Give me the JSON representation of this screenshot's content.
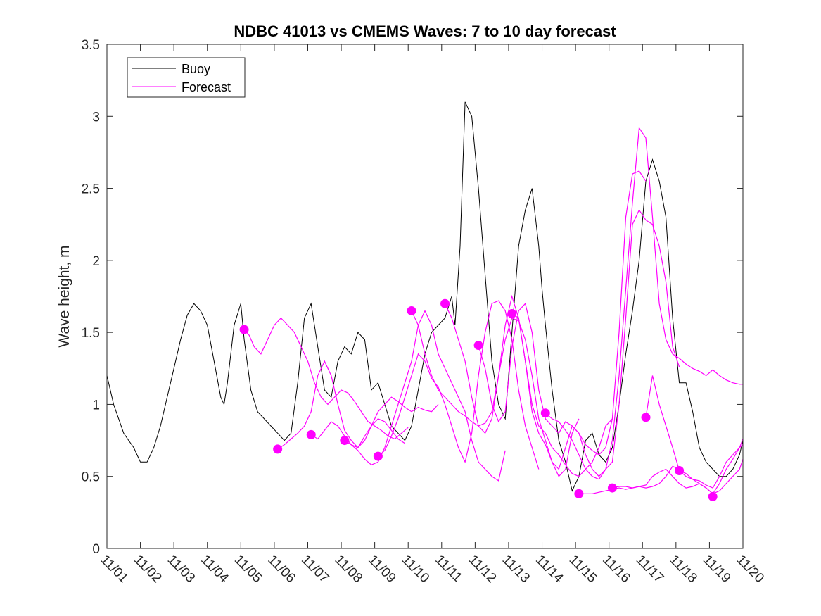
{
  "chart_data": {
    "type": "line",
    "title": "NDBC 41013 vs CMEMS Waves: 7 to 10 day forecast",
    "xlabel": "",
    "ylabel": "Wave height, m",
    "xlim": [
      0,
      19
    ],
    "ylim": [
      0,
      3.5
    ],
    "xticks": [
      "11/01",
      "11/02",
      "11/03",
      "11/04",
      "11/05",
      "11/06",
      "11/07",
      "11/08",
      "11/09",
      "11/10",
      "11/11",
      "11/12",
      "11/13",
      "11/14",
      "11/15",
      "11/16",
      "11/17",
      "11/18",
      "11/19",
      "11/20"
    ],
    "yticks": [
      0,
      0.5,
      1,
      1.5,
      2,
      2.5,
      3,
      3.5
    ],
    "ytick_labels": [
      "0",
      "0.5",
      "1",
      "1.5",
      "2",
      "2.5",
      "3",
      "3.5"
    ],
    "legend": {
      "position": "top-left",
      "entries": [
        "Buoy",
        "Forecast"
      ]
    },
    "colors": {
      "buoy": "#000000",
      "forecast": "#ff00ff"
    },
    "buoy": {
      "name": "Buoy",
      "x": [
        0,
        0.1,
        0.2,
        0.35,
        0.5,
        0.65,
        0.8,
        0.9,
        1.0,
        1.2,
        1.4,
        1.6,
        1.8,
        2.0,
        2.2,
        2.4,
        2.6,
        2.8,
        3.0,
        3.2,
        3.4,
        3.5,
        3.6,
        3.8,
        4.0,
        4.1,
        4.3,
        4.5,
        4.7,
        4.9,
        5.1,
        5.3,
        5.5,
        5.7,
        5.9,
        6.1,
        6.3,
        6.5,
        6.7,
        6.9,
        7.1,
        7.3,
        7.5,
        7.7,
        7.9,
        8.1,
        8.3,
        8.5,
        8.7,
        8.9,
        9.1,
        9.3,
        9.5,
        9.7,
        9.9,
        10.1,
        10.3,
        10.4,
        10.55,
        10.7,
        10.9,
        11.1,
        11.3,
        11.5,
        11.7,
        11.9,
        12.1,
        12.3,
        12.5,
        12.7,
        12.9,
        13.0,
        13.1,
        13.3,
        13.5,
        13.7,
        13.9,
        14.1,
        14.3,
        14.5,
        14.7,
        14.9,
        15.1,
        15.3,
        15.5,
        15.7,
        15.9,
        16.1,
        16.3,
        16.5,
        16.7,
        16.9,
        17.1,
        17.3,
        17.5,
        17.7,
        17.9,
        18.1,
        18.3,
        18.5,
        18.7,
        18.9,
        19.0
      ],
      "values": [
        1.2,
        1.1,
        1.0,
        0.9,
        0.8,
        0.75,
        0.7,
        0.65,
        0.6,
        0.6,
        0.7,
        0.85,
        1.05,
        1.25,
        1.45,
        1.62,
        1.7,
        1.65,
        1.55,
        1.3,
        1.05,
        1.0,
        1.15,
        1.55,
        1.7,
        1.45,
        1.1,
        0.95,
        0.9,
        0.85,
        0.8,
        0.75,
        0.8,
        1.15,
        1.6,
        1.7,
        1.4,
        1.1,
        1.05,
        1.3,
        1.4,
        1.35,
        1.5,
        1.45,
        1.1,
        1.15,
        1.0,
        0.85,
        0.8,
        0.75,
        0.85,
        1.1,
        1.35,
        1.5,
        1.55,
        1.6,
        1.75,
        1.55,
        2.1,
        3.1,
        3.0,
        2.5,
        1.9,
        1.3,
        1.0,
        0.9,
        1.5,
        2.1,
        2.35,
        2.5,
        2.1,
        1.8,
        1.55,
        1.1,
        0.75,
        0.6,
        0.4,
        0.5,
        0.75,
        0.8,
        0.65,
        0.6,
        0.7,
        1.0,
        1.35,
        1.65,
        2.0,
        2.55,
        2.7,
        2.55,
        2.3,
        1.6,
        1.15,
        1.15,
        0.95,
        0.7,
        0.6,
        0.55,
        0.5,
        0.5,
        0.55,
        0.65,
        0.75
      ]
    },
    "forecast_runs": [
      {
        "x": [
          4.1,
          4.25,
          4.4,
          4.6,
          4.8,
          5.0,
          5.2,
          5.4,
          5.6,
          5.8,
          6.0,
          6.2,
          6.4,
          6.6,
          6.8,
          7.0,
          7.2,
          7.4,
          7.6,
          7.8,
          8.0,
          8.2,
          8.4,
          8.6,
          8.8,
          9.0
        ],
        "values": [
          1.52,
          1.48,
          1.4,
          1.35,
          1.45,
          1.55,
          1.6,
          1.55,
          1.5,
          1.4,
          1.3,
          1.15,
          1.05,
          1.0,
          1.05,
          1.1,
          1.08,
          1.02,
          0.95,
          0.88,
          0.85,
          0.82,
          0.78,
          0.76,
          0.8,
          0.84
        ]
      },
      {
        "x": [
          5.1,
          5.3,
          5.5,
          5.7,
          5.9,
          6.1,
          6.3,
          6.5,
          6.7,
          6.9,
          7.1,
          7.3,
          7.5,
          7.7,
          7.9,
          8.1,
          8.3,
          8.5,
          8.7,
          8.9
        ],
        "values": [
          0.69,
          0.72,
          0.76,
          0.8,
          0.85,
          0.95,
          1.2,
          1.3,
          1.2,
          1.0,
          0.82,
          0.75,
          0.7,
          0.78,
          0.85,
          0.9,
          0.88,
          0.82,
          0.76,
          0.73
        ]
      },
      {
        "x": [
          6.1,
          6.3,
          6.5,
          6.7,
          6.9,
          7.1,
          7.3,
          7.5,
          7.7,
          7.9,
          8.1,
          8.3,
          8.5,
          8.7,
          8.9,
          9.1,
          9.3,
          9.5,
          9.7,
          9.9
        ],
        "values": [
          0.79,
          0.76,
          0.82,
          0.88,
          0.85,
          0.78,
          0.72,
          0.7,
          0.75,
          0.85,
          0.95,
          1.0,
          1.05,
          1.02,
          0.98,
          0.95,
          0.98,
          0.96,
          0.95,
          1.0
        ]
      },
      {
        "x": [
          7.1,
          7.3,
          7.5,
          7.7,
          7.9,
          8.1,
          8.3,
          8.5,
          8.7,
          8.9,
          9.1,
          9.3,
          9.5,
          9.7,
          9.9,
          10.1,
          10.3,
          10.5,
          10.7,
          10.9,
          11.1,
          11.3,
          11.5,
          11.7,
          11.9
        ],
        "values": [
          0.75,
          0.72,
          0.68,
          0.62,
          0.58,
          0.6,
          0.7,
          0.85,
          1.0,
          1.15,
          1.3,
          1.55,
          1.65,
          1.55,
          1.35,
          1.25,
          1.15,
          1.05,
          0.95,
          0.75,
          0.6,
          0.55,
          0.5,
          0.47,
          0.68
        ]
      },
      {
        "x": [
          8.1,
          8.3,
          8.5,
          8.7,
          8.9,
          9.1,
          9.3,
          9.5,
          9.7,
          9.9,
          10.1,
          10.3,
          10.5,
          10.7,
          10.9,
          11.1,
          11.3,
          11.5,
          11.7,
          11.9,
          12.1,
          12.3,
          12.5,
          12.7,
          12.9
        ],
        "values": [
          0.64,
          0.68,
          0.78,
          0.9,
          1.05,
          1.2,
          1.35,
          1.3,
          1.18,
          1.12,
          1.0,
          0.85,
          0.7,
          0.6,
          0.8,
          1.2,
          1.5,
          1.7,
          1.72,
          1.65,
          1.45,
          1.1,
          0.85,
          0.7,
          0.55
        ]
      },
      {
        "x": [
          9.1,
          9.3,
          9.5,
          9.7,
          9.9,
          10.1,
          10.3,
          10.5,
          10.7,
          10.9,
          11.1,
          11.3,
          11.5,
          11.7,
          11.9,
          12.1,
          12.3,
          12.5,
          12.7,
          12.9,
          13.1,
          13.3,
          13.5,
          13.7,
          13.9,
          14.1
        ],
        "values": [
          1.65,
          1.55,
          1.35,
          1.2,
          1.1,
          1.05,
          1.0,
          0.95,
          0.92,
          0.88,
          0.85,
          0.87,
          0.95,
          1.2,
          1.45,
          1.6,
          1.58,
          1.45,
          1.2,
          0.9,
          0.75,
          0.6,
          0.5,
          0.55,
          0.8,
          0.9
        ]
      },
      {
        "x": [
          10.1,
          10.3,
          10.5,
          10.7,
          10.9,
          11.1,
          11.3,
          11.5,
          11.7,
          11.9,
          12.1,
          12.3,
          12.5,
          12.7,
          12.9,
          13.1,
          13.3,
          13.5,
          13.7,
          13.9,
          14.1,
          14.3,
          14.5,
          14.7,
          14.9,
          15.1
        ],
        "values": [
          1.7,
          1.6,
          1.45,
          1.3,
          1.05,
          0.85,
          0.8,
          0.9,
          1.2,
          1.55,
          1.75,
          1.6,
          1.3,
          1.0,
          0.85,
          0.8,
          0.7,
          0.65,
          0.58,
          0.52,
          0.5,
          0.55,
          0.6,
          0.7,
          0.85,
          0.9
        ]
      },
      {
        "x": [
          11.1,
          11.3,
          11.5,
          11.7,
          11.9,
          12.1,
          12.3,
          12.5,
          12.7,
          12.9,
          13.1,
          13.3,
          13.5,
          13.7,
          13.9,
          14.1,
          14.3,
          14.5,
          14.7,
          14.9,
          15.1,
          15.3,
          15.5,
          15.7,
          15.9,
          16.1
        ],
        "values": [
          1.41,
          1.25,
          1.0,
          0.88,
          0.95,
          1.4,
          1.65,
          1.7,
          1.5,
          1.1,
          0.9,
          0.85,
          0.8,
          0.88,
          0.85,
          0.8,
          0.72,
          0.68,
          0.65,
          0.7,
          0.9,
          1.5,
          2.3,
          2.6,
          2.62,
          2.55
        ]
      },
      {
        "x": [
          12.1,
          12.3,
          12.5,
          12.7,
          12.9,
          13.1,
          13.3,
          13.5,
          13.7,
          13.9,
          14.1,
          14.3,
          14.5,
          14.7,
          14.9,
          15.1,
          15.3,
          15.5,
          15.7,
          15.9,
          16.1,
          16.3,
          16.5,
          16.7,
          16.9,
          17.1
        ],
        "values": [
          1.63,
          1.6,
          1.3,
          0.95,
          0.8,
          0.72,
          0.6,
          0.55,
          0.7,
          0.85,
          0.8,
          0.65,
          0.55,
          0.5,
          0.55,
          0.6,
          1.0,
          1.6,
          2.25,
          2.35,
          2.28,
          2.25,
          2.1,
          1.85,
          1.4,
          1.26
        ]
      },
      {
        "x": [
          13.1,
          13.3,
          13.5,
          13.7,
          13.9,
          14.1,
          14.3,
          14.5,
          14.7,
          14.9,
          15.1,
          15.3,
          15.5,
          15.7,
          15.9,
          16.1,
          16.3,
          16.5,
          16.7,
          16.9,
          17.1,
          17.3,
          17.5,
          17.7,
          17.9,
          18.1,
          18.3,
          18.5,
          18.7,
          18.9,
          19.0
        ],
        "values": [
          0.94,
          0.9,
          0.88,
          0.82,
          0.75,
          0.65,
          0.55,
          0.5,
          0.48,
          0.55,
          0.75,
          1.2,
          1.8,
          2.4,
          2.92,
          2.85,
          2.3,
          1.7,
          1.45,
          1.35,
          1.32,
          1.28,
          1.25,
          1.23,
          1.2,
          1.24,
          1.2,
          1.17,
          1.15,
          1.14,
          1.14
        ]
      },
      {
        "x": [
          14.1,
          14.3,
          14.5,
          14.7,
          14.9,
          15.1,
          15.3,
          15.5,
          15.7,
          15.9,
          16.1,
          16.3,
          16.5,
          16.7,
          16.9,
          17.1
        ],
        "values": [
          0.38,
          0.38,
          0.38,
          0.39,
          0.4,
          0.41,
          0.42,
          0.41,
          0.42,
          0.43,
          0.42,
          0.43,
          0.45,
          0.5,
          0.57,
          0.55
        ]
      },
      {
        "x": [
          15.1,
          15.3,
          15.5,
          15.7,
          15.9,
          16.1,
          16.3,
          16.5,
          16.7,
          16.9,
          17.1,
          17.3,
          17.5,
          17.7,
          17.9,
          18.1,
          18.3,
          18.5,
          18.7,
          18.9,
          19.0
        ],
        "values": [
          0.42,
          0.43,
          0.43,
          0.42,
          0.43,
          0.44,
          0.5,
          0.53,
          0.55,
          0.5,
          0.45,
          0.42,
          0.43,
          0.45,
          0.42,
          0.38,
          0.4,
          0.45,
          0.5,
          0.55,
          0.62
        ]
      },
      {
        "x": [
          16.1,
          16.3,
          16.5,
          16.7,
          16.9,
          17.1,
          17.3,
          17.5,
          17.7,
          17.9,
          18.1,
          18.3,
          18.5,
          18.7,
          18.9,
          19.0
        ],
        "values": [
          0.91,
          1.2,
          1.0,
          0.85,
          0.7,
          0.54,
          0.5,
          0.48,
          0.47,
          0.44,
          0.42,
          0.5,
          0.6,
          0.65,
          0.7,
          0.76
        ]
      },
      {
        "x": [
          17.1,
          17.3,
          17.5,
          17.7,
          17.9,
          18.1,
          18.3,
          18.5,
          18.7,
          18.9,
          19.0
        ],
        "values": [
          0.54,
          0.52,
          0.48,
          0.45,
          0.42,
          0.38,
          0.45,
          0.55,
          0.62,
          0.7,
          0.72
        ]
      }
    ],
    "forecast_markers": {
      "x": [
        4.1,
        5.1,
        6.1,
        7.1,
        8.1,
        9.1,
        10.1,
        11.1,
        12.1,
        13.1,
        14.1,
        15.1,
        16.1,
        17.1,
        18.1
      ],
      "values": [
        1.52,
        0.69,
        0.79,
        0.75,
        0.64,
        1.65,
        1.7,
        1.41,
        1.63,
        0.94,
        0.38,
        0.42,
        0.91,
        0.54,
        0.36
      ]
    }
  }
}
